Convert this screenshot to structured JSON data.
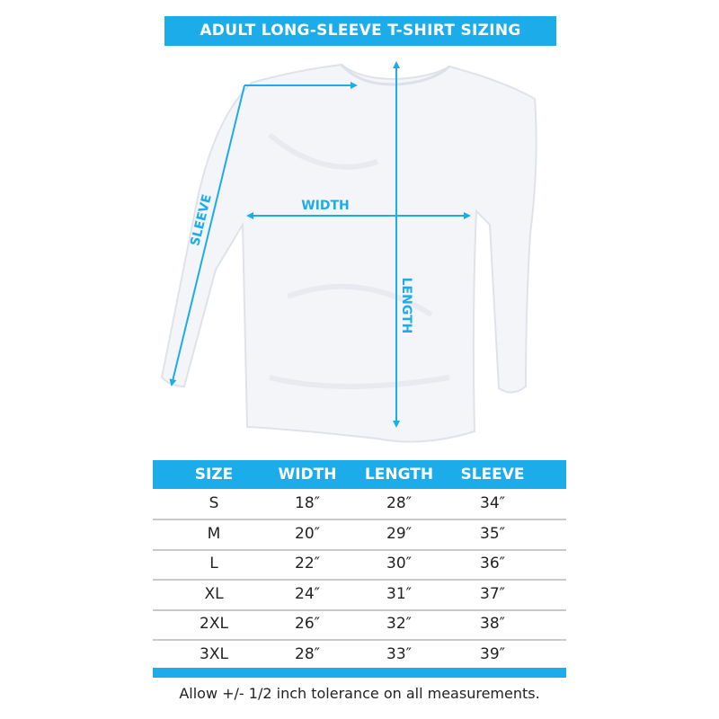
{
  "title": "ADULT LONG-SLEEVE T-SHIRT SIZING",
  "diagram": {
    "labels": {
      "sleeve": "SLEEVE",
      "width": "WIDTH",
      "length": "LENGTH"
    }
  },
  "table": {
    "headers": [
      "SIZE",
      "WIDTH",
      "LENGTH",
      "SLEEVE"
    ],
    "rows": [
      [
        "S",
        "18″",
        "28″",
        "34″"
      ],
      [
        "M",
        "20″",
        "29″",
        "35″"
      ],
      [
        "L",
        "22″",
        "30″",
        "36″"
      ],
      [
        "XL",
        "24″",
        "31″",
        "37″"
      ],
      [
        "2XL",
        "26″",
        "32″",
        "38″"
      ],
      [
        "3XL",
        "28″",
        "33″",
        "39″"
      ]
    ]
  },
  "footnote": "Allow +/- 1/2 inch tolerance on all measurements.",
  "colors": {
    "accent": "#1cacea",
    "text": "#222222",
    "divider": "#c9c9c9"
  }
}
